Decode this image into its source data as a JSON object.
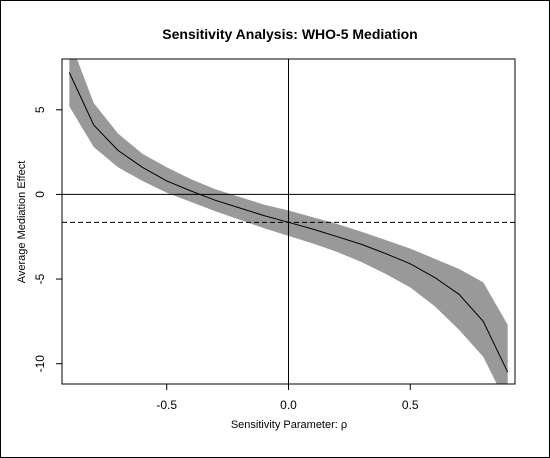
{
  "chart_data": {
    "type": "line",
    "title": "Sensitivity Analysis: WHO-5 Mediation",
    "xlabel": "Sensitivity Parameter: ρ",
    "ylabel": "Average Mediation Effect",
    "xlim": [
      -0.93,
      0.93
    ],
    "ylim": [
      -11.2,
      8.0
    ],
    "x_ticks": [
      -0.5,
      0.0,
      0.5
    ],
    "x_tick_labels": [
      "-0.5",
      "0.0",
      "0.5"
    ],
    "y_ticks": [
      -10,
      -5,
      0,
      5
    ],
    "y_tick_labels": [
      "-10",
      "-5",
      "0",
      "5"
    ],
    "grid": false,
    "legend": "none",
    "reference_lines": {
      "horizontal_solid": 0,
      "vertical_solid": 0,
      "horizontal_dashed": -1.65
    },
    "series": [
      {
        "x": [
          -0.9,
          -0.8,
          -0.7,
          -0.6,
          -0.5,
          -0.4,
          -0.3,
          -0.2,
          -0.1,
          0.0,
          0.1,
          0.2,
          0.3,
          0.4,
          0.5,
          0.6,
          0.7,
          0.8,
          0.9
        ],
        "estimate": [
          7.2,
          4.1,
          2.6,
          1.6,
          0.8,
          0.2,
          -0.35,
          -0.8,
          -1.25,
          -1.65,
          -2.05,
          -2.5,
          -2.95,
          -3.5,
          -4.1,
          -4.9,
          -5.9,
          -7.5,
          -10.5
        ],
        "ci_lower": [
          5.2,
          2.8,
          1.6,
          0.8,
          0.1,
          -0.45,
          -1.0,
          -1.5,
          -2.0,
          -2.45,
          -2.9,
          -3.4,
          -4.0,
          -4.7,
          -5.5,
          -6.6,
          -8.0,
          -9.6,
          -12.5
        ],
        "ci_upper": [
          9.2,
          5.4,
          3.6,
          2.4,
          1.6,
          0.9,
          0.3,
          -0.15,
          -0.6,
          -0.95,
          -1.35,
          -1.75,
          -2.2,
          -2.7,
          -3.2,
          -3.8,
          -4.4,
          -5.2,
          -7.7
        ]
      }
    ],
    "colors": {
      "band": "#999999",
      "line": "#000000"
    }
  }
}
